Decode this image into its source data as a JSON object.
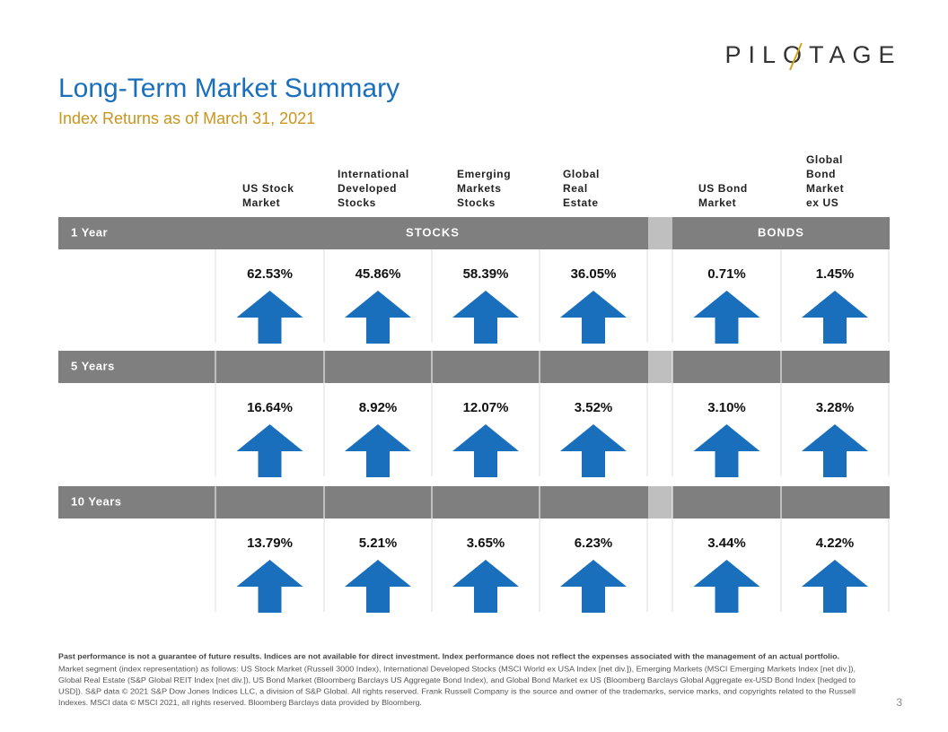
{
  "logo": "PILOTAGE",
  "title": "Long-Term Market Summary",
  "subtitle": "Index Returns as of March 31, 2021",
  "columns": [
    [
      "US Stock",
      "Market"
    ],
    [
      "International",
      "Developed",
      "Stocks"
    ],
    [
      "Emerging",
      "Markets",
      "Stocks"
    ],
    [
      "Global",
      "Real",
      "Estate"
    ],
    [
      "US Bond",
      "Market"
    ],
    [
      "Global",
      "Bond",
      "Market",
      "ex US"
    ]
  ],
  "groups": [
    "STOCKS",
    "BONDS"
  ],
  "rows": [
    {
      "label": "1 Year",
      "values": [
        "62.53%",
        "45.86%",
        "58.39%",
        "36.05%",
        "0.71%",
        "1.45%"
      ]
    },
    {
      "label": "5 Years",
      "values": [
        "16.64%",
        "8.92%",
        "12.07%",
        "3.52%",
        "3.10%",
        "3.28%"
      ]
    },
    {
      "label": "10 Years",
      "values": [
        "13.79%",
        "5.21%",
        "3.65%",
        "6.23%",
        "3.44%",
        "4.22%"
      ]
    }
  ],
  "footnote": {
    "bold": "Past performance is not a guarantee of future results. Indices are not available for direct investment. Index performance does not reflect the expenses associated with the management of an actual portfolio.",
    "lines": [
      "Market segment (index representation) as follows: US Stock Market (Russell 3000 Index), International Developed Stocks (MSCI World ex USA Index [net div.]), Emerging Markets (MSCI Emerging Markets Index [net div.]),",
      "Global Real Estate (S&P Global REIT Index [net div.]), US Bond Market (Bloomberg Barclays US Aggregate Bond Index), and Global Bond Market ex US (Bloomberg Barclays Global Aggregate ex-USD Bond Index [hedged to",
      "USD]). S&P data © 2021 S&P Dow Jones Indices LLC, a division of S&P Global. All rights reserved. Frank Russell Company is the source and owner of the trademarks, service marks, and copyrights related to the Russell",
      "Indexes. MSCI data © MSCI 2021, all rights reserved. Bloomberg Barclays data provided by Bloomberg."
    ]
  },
  "page_number": "3"
}
